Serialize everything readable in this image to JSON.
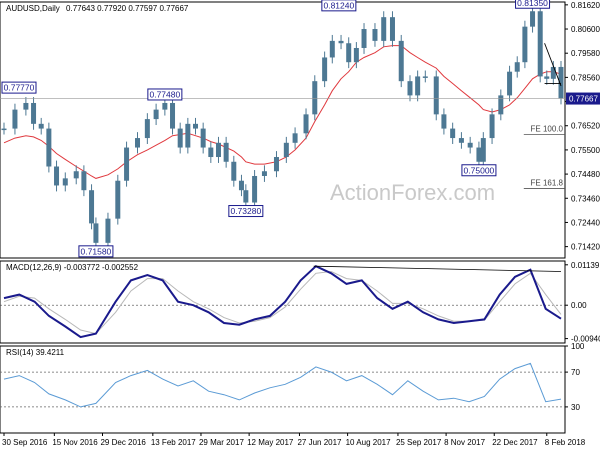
{
  "header": {
    "symbol": "AUDUSD,Daily",
    "ohlc": "0.77643 0.77920 0.77597 0.77667"
  },
  "watermark": "ActionForex.com",
  "colors": {
    "candle": "#4d7893",
    "ma": "#e0393e",
    "macd": "#1a1a8c",
    "signal": "#b8b8b8",
    "rsi": "#5b9bd5",
    "price_tag": "#1a1a8c",
    "fe_line": "#555555",
    "trend_line": "#000000"
  },
  "chart_data": [
    {
      "type": "candlestick",
      "panel": "price",
      "title": "AUDUSD,Daily",
      "ylim": [
        0.7094,
        0.8174
      ],
      "y_ticks": [
        "0.81620",
        "0.80600",
        "0.79580",
        "0.78560",
        "0.77540",
        "0.76520",
        "0.75500",
        "0.74480",
        "0.73460",
        "0.72440",
        "0.71420"
      ],
      "x_ticks": [
        "30 Sep 2016",
        "15 Nov 2016",
        "29 Dec 2016",
        "13 Feb 2017",
        "29 Mar 2017",
        "12 May 2017",
        "27 Jun 2017",
        "10 Aug 2017",
        "25 Sep 2017",
        "8 Nov 2017",
        "22 Dec 2017",
        "8 Feb 2018"
      ],
      "x_range": [
        "2016-09-30",
        "2018-02-21"
      ],
      "series": [
        {
          "key": "close",
          "style": "candles",
          "x": [
            "2016-09-30",
            "2016-10-10",
            "2016-10-20",
            "2016-10-27",
            "2016-11-03",
            "2016-11-10",
            "2016-11-17",
            "2016-11-25",
            "2016-12-05",
            "2016-12-12",
            "2016-12-19",
            "2016-12-23",
            "2017-01-03",
            "2017-01-12",
            "2017-01-20",
            "2017-01-30",
            "2017-02-08",
            "2017-02-16",
            "2017-02-24",
            "2017-03-03",
            "2017-03-10",
            "2017-03-17",
            "2017-03-24",
            "2017-03-31",
            "2017-04-07",
            "2017-04-14",
            "2017-04-21",
            "2017-04-28",
            "2017-05-05",
            "2017-05-09",
            "2017-05-17",
            "2017-05-26",
            "2017-06-06",
            "2017-06-15",
            "2017-06-23",
            "2017-07-03",
            "2017-07-11",
            "2017-07-20",
            "2017-07-27",
            "2017-08-04",
            "2017-08-11",
            "2017-08-18",
            "2017-08-25",
            "2017-09-04",
            "2017-09-12",
            "2017-09-20",
            "2017-09-28",
            "2017-10-06",
            "2017-10-13",
            "2017-10-20",
            "2017-10-30",
            "2017-11-06",
            "2017-11-14",
            "2017-11-22",
            "2017-11-30",
            "2017-12-08",
            "2017-12-12",
            "2017-12-20",
            "2017-12-28",
            "2018-01-05",
            "2018-01-12",
            "2018-01-19",
            "2018-01-26",
            "2018-02-02",
            "2018-02-08",
            "2018-02-14",
            "2018-02-21"
          ],
          "values": [
            0.764,
            0.772,
            0.7748,
            0.766,
            0.764,
            0.748,
            0.74,
            0.743,
            0.746,
            0.738,
            0.724,
            0.7158,
            0.726,
            0.742,
            0.756,
            0.76,
            0.768,
            0.772,
            0.7748,
            0.764,
            0.756,
            0.766,
            0.764,
            0.756,
            0.752,
            0.758,
            0.75,
            0.742,
            0.738,
            0.7328,
            0.744,
            0.746,
            0.752,
            0.758,
            0.762,
            0.77,
            0.784,
            0.794,
            0.801,
            0.8,
            0.792,
            0.798,
            0.806,
            0.801,
            0.811,
            0.801,
            0.784,
            0.778,
            0.786,
            0.786,
            0.77,
            0.764,
            0.76,
            0.758,
            0.756,
            0.75,
            0.76,
            0.77,
            0.778,
            0.788,
            0.792,
            0.807,
            0.8135,
            0.786,
            0.785,
            0.79,
            0.7767
          ]
        },
        {
          "key": "ma",
          "style": "line",
          "name": "",
          "values": [
            0.758,
            0.76,
            0.761,
            0.7605,
            0.759,
            0.7565,
            0.7535,
            0.751,
            0.748,
            0.746,
            0.744,
            0.743,
            0.7445,
            0.747,
            0.75,
            0.753,
            0.755,
            0.757,
            0.759,
            0.761,
            0.7615,
            0.762,
            0.761,
            0.76,
            0.7585,
            0.7575,
            0.756,
            0.7545,
            0.752,
            0.75,
            0.749,
            0.749,
            0.75,
            0.752,
            0.755,
            0.76,
            0.767,
            0.774,
            0.78,
            0.785,
            0.788,
            0.792,
            0.794,
            0.796,
            0.7985,
            0.799,
            0.799,
            0.796,
            0.794,
            0.792,
            0.7895,
            0.786,
            0.783,
            0.78,
            0.777,
            0.774,
            0.772,
            0.771,
            0.772,
            0.774,
            0.777,
            0.781,
            0.785,
            0.787,
            0.788,
            0.788,
            0.787
          ]
        }
      ],
      "annotations": [
        {
          "label": "0.77770",
          "date": "2016-09-30",
          "value": 0.7777,
          "anchor": "above"
        },
        {
          "label": "0.71580",
          "date": "2016-12-23",
          "value": 0.7158,
          "anchor": "below"
        },
        {
          "label": "0.77480",
          "date": "2017-02-24",
          "value": 0.7748,
          "anchor": "above"
        },
        {
          "label": "0.73280",
          "date": "2017-05-09",
          "value": 0.7328,
          "anchor": "below"
        },
        {
          "label": "0.81240",
          "date": "2017-08-02",
          "value": 0.8124,
          "anchor": "above"
        },
        {
          "label": "0.75000",
          "date": "2017-12-08",
          "value": 0.75,
          "anchor": "below"
        },
        {
          "label": "0.81350",
          "date": "2018-01-26",
          "value": 0.8135,
          "anchor": "above"
        }
      ],
      "reference_lines": [
        {
          "label": "FE 100.0",
          "value": 0.7615,
          "from": "2018-01-18"
        },
        {
          "label": "FE 161.8",
          "value": 0.7387,
          "from": "2018-01-18"
        }
      ],
      "horizontal_lines": [
        {
          "value": 0.7767
        }
      ],
      "trend_lines": [
        {
          "from": [
            "2018-02-06",
            0.8
          ],
          "to": [
            "2018-02-21",
            0.782
          ]
        },
        {
          "from": [
            "2018-02-06",
            0.783
          ],
          "to": [
            "2018-02-21",
            0.783
          ]
        }
      ],
      "current_price": "0.77667"
    },
    {
      "type": "line",
      "panel": "macd",
      "title": "MACD(12,26,9) -0.003772 -0.002552",
      "ylim": [
        -0.01065,
        0.01246
      ],
      "y_ticks": [
        "0.01139",
        "0.00",
        "-0.009408"
      ],
      "series": [
        {
          "key": "macd",
          "name": "",
          "x": [
            "2016-09-30",
            "2016-10-14",
            "2016-10-28",
            "2016-11-10",
            "2016-11-25",
            "2016-12-09",
            "2016-12-23",
            "2017-01-10",
            "2017-01-24",
            "2017-02-08",
            "2017-02-22",
            "2017-03-08",
            "2017-03-22",
            "2017-04-05",
            "2017-04-19",
            "2017-05-03",
            "2017-05-17",
            "2017-05-31",
            "2017-06-14",
            "2017-06-28",
            "2017-07-12",
            "2017-07-26",
            "2017-08-09",
            "2017-08-23",
            "2017-09-06",
            "2017-09-20",
            "2017-10-04",
            "2017-10-18",
            "2017-11-01",
            "2017-11-15",
            "2017-11-29",
            "2017-12-13",
            "2017-12-27",
            "2018-01-10",
            "2018-01-24",
            "2018-02-07",
            "2018-02-21"
          ],
          "values": [
            0.002,
            0.003,
            0.001,
            -0.003,
            -0.006,
            -0.009,
            -0.008,
            0.001,
            0.007,
            0.0085,
            0.007,
            0.001,
            0.0,
            -0.002,
            -0.005,
            -0.0055,
            -0.004,
            -0.003,
            0.001,
            0.007,
            0.011,
            0.009,
            0.006,
            0.007,
            0.002,
            -0.001,
            0.001,
            -0.002,
            -0.004,
            -0.005,
            -0.0045,
            -0.004,
            0.003,
            0.008,
            0.01,
            -0.001,
            -0.0038
          ]
        },
        {
          "key": "signal",
          "name": "",
          "values": [
            0.001,
            0.0025,
            0.002,
            -0.001,
            -0.004,
            -0.007,
            -0.008,
            -0.002,
            0.004,
            0.0075,
            0.0075,
            0.004,
            0.001,
            -0.001,
            -0.0035,
            -0.005,
            -0.0045,
            -0.0035,
            -0.0005,
            0.0045,
            0.009,
            0.0095,
            0.0075,
            0.007,
            0.004,
            0.0005,
            0.0005,
            -0.001,
            -0.003,
            -0.0045,
            -0.0045,
            -0.0042,
            0.001,
            0.006,
            0.009,
            0.003,
            -0.0026
          ]
        }
      ],
      "zero_line": true,
      "trend_line": {
        "from": [
          "2017-07-10",
          0.011
        ],
        "to": [
          "2018-02-21",
          0.0095
        ]
      }
    },
    {
      "type": "line",
      "panel": "rsi",
      "title": "RSI(14) 39.4211",
      "ylim": [
        0,
        100
      ],
      "y_ticks": [
        "100",
        "70",
        "30",
        "0"
      ],
      "levels": [
        70,
        30
      ],
      "series": [
        {
          "key": "rsi",
          "name": "",
          "x": [
            "2016-09-30",
            "2016-10-14",
            "2016-10-28",
            "2016-11-10",
            "2016-11-25",
            "2016-12-09",
            "2016-12-23",
            "2017-01-10",
            "2017-01-24",
            "2017-02-08",
            "2017-02-22",
            "2017-03-08",
            "2017-03-22",
            "2017-04-05",
            "2017-04-19",
            "2017-05-03",
            "2017-05-17",
            "2017-05-31",
            "2017-06-14",
            "2017-06-28",
            "2017-07-12",
            "2017-07-26",
            "2017-08-09",
            "2017-08-23",
            "2017-09-06",
            "2017-09-20",
            "2017-10-04",
            "2017-10-18",
            "2017-11-01",
            "2017-11-15",
            "2017-11-29",
            "2017-12-13",
            "2017-12-27",
            "2018-01-10",
            "2018-01-24",
            "2018-02-07",
            "2018-02-21"
          ],
          "values": [
            62,
            66,
            58,
            45,
            38,
            30,
            34,
            58,
            66,
            72,
            62,
            54,
            60,
            48,
            44,
            38,
            46,
            52,
            56,
            64,
            76,
            70,
            60,
            66,
            56,
            44,
            60,
            48,
            38,
            40,
            36,
            42,
            62,
            74,
            80,
            36,
            39
          ]
        }
      ]
    }
  ]
}
